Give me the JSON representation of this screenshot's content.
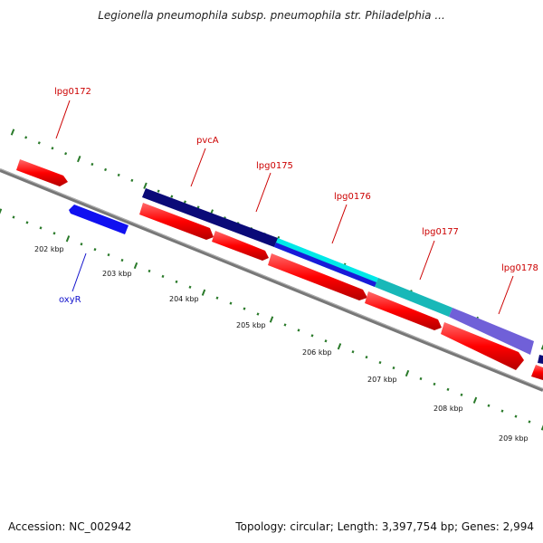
{
  "title": "Legionella pneumophila subsp. pneumophila str. Philadelphia ...",
  "accession": "Accession: NC_002942",
  "summary": "Topology: circular; Length: 3,397,754 bp; Genes: 2,994",
  "colors": {
    "gene_red": "#ff0000",
    "gene_blue": "#1010f0",
    "navy": "#0a0a78",
    "cyan": "#00e8e8",
    "teal": "#18b8b8",
    "lavender": "#7060d8",
    "label_red": "#cc0000",
    "label_blue": "#1010cc",
    "tick_green": "#2a7a2a",
    "backbone": "#808080"
  },
  "axis_labels": [
    "202 kbp",
    "203 kbp",
    "204 kbp",
    "205 kbp",
    "206 kbp",
    "207 kbp",
    "208 kbp",
    "209 kbp"
  ],
  "gene_labels": [
    "lpg0172",
    "pvcA",
    "lpg0175",
    "lpg0176",
    "lpg0177",
    "lpg0178",
    "oxyR"
  ]
}
